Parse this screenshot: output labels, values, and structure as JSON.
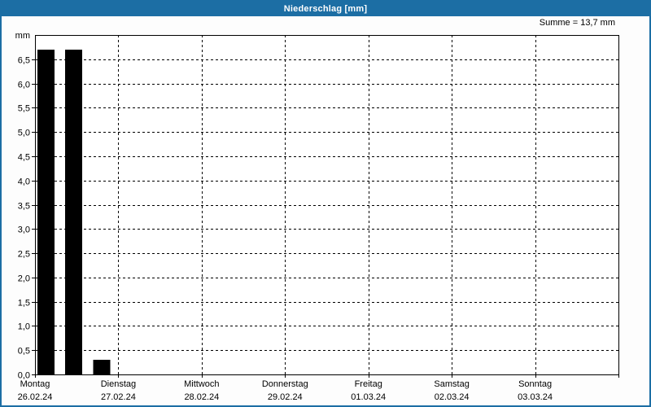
{
  "window": {
    "title": "Niederschlag [mm]"
  },
  "summary": "Summe = 13,7 mm",
  "colors": {
    "titlebar_bg": "#1c6ea4",
    "titlebar_text": "#ffffff",
    "frame_border": "#1c6ea4",
    "panel_bg": "#fdfdfd",
    "plot_bg": "#ffffff",
    "plot_border": "#000000",
    "grid": "#000000",
    "bar": "#000000",
    "text": "#000000"
  },
  "chart_data": {
    "type": "bar",
    "title": "Niederschlag [mm]",
    "unit": "mm",
    "ylim": [
      0,
      7
    ],
    "ytick_step": 0.5,
    "ytick_labels": [
      "0,0",
      "0,5",
      "1,0",
      "1,5",
      "2,0",
      "2,5",
      "3,0",
      "3,5",
      "4,0",
      "4,5",
      "5,0",
      "5,5",
      "6,0",
      "6,5"
    ],
    "grid": "dashed",
    "legend": "none",
    "days": [
      {
        "name": "Montag",
        "date": "26.02.24"
      },
      {
        "name": "Dienstag",
        "date": "27.02.24"
      },
      {
        "name": "Mittwoch",
        "date": "28.02.24"
      },
      {
        "name": "Donnerstag",
        "date": "29.02.24"
      },
      {
        "name": "Freitag",
        "date": "01.03.24"
      },
      {
        "name": "Samstag",
        "date": "02.03.24"
      },
      {
        "name": "Sonntag",
        "date": "03.03.24"
      }
    ],
    "slots_per_day": 3,
    "bars": [
      {
        "day_index": 0,
        "slot_index": 0,
        "value_mm": 6.7
      },
      {
        "day_index": 0,
        "slot_index": 1,
        "value_mm": 6.7
      },
      {
        "day_index": 0,
        "slot_index": 2,
        "value_mm": 0.3
      }
    ],
    "sum_mm": 13.7,
    "sum_label": "Summe = 13,7 mm"
  }
}
